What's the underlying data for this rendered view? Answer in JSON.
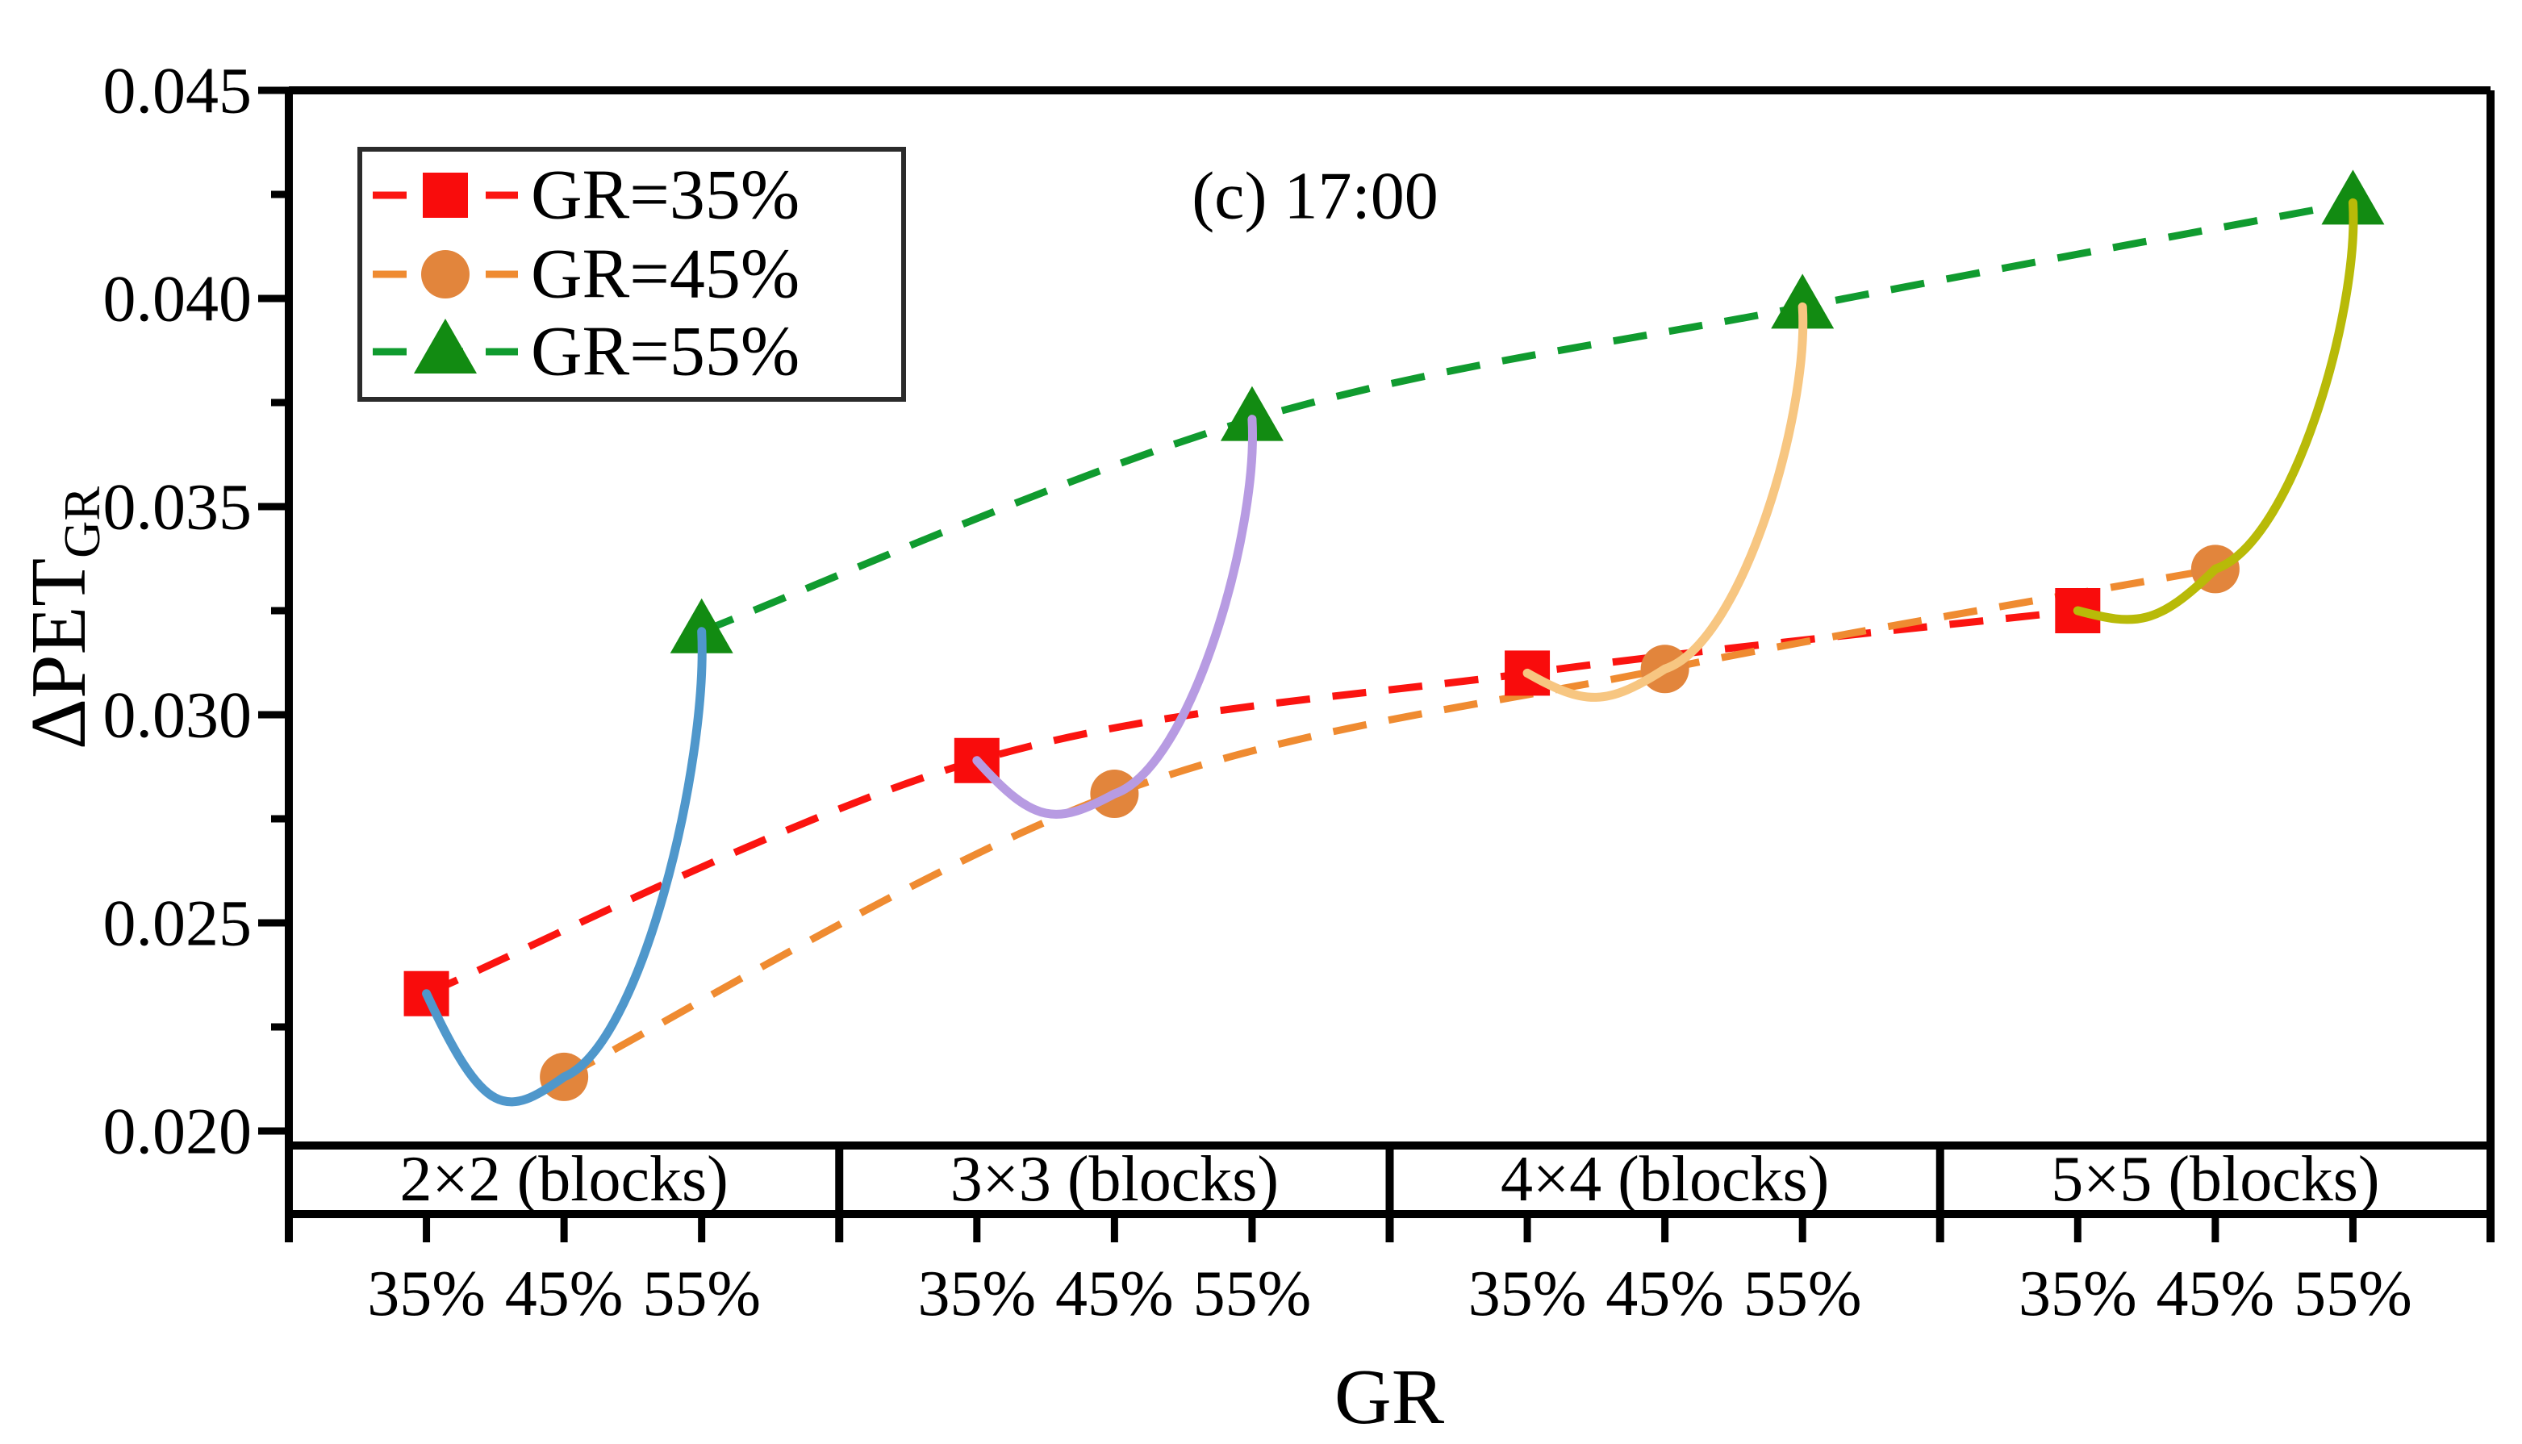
{
  "chart_data": {
    "type": "line",
    "title": "(c) 17:00",
    "xlabel": "GR",
    "ylabel_main": "ΔPET",
    "ylabel_sub": "GR",
    "groups": [
      "2×2 (blocks)",
      "3×3 (blocks)",
      "4×4 (blocks)",
      "5×5 (blocks)"
    ],
    "x_tick_labels": [
      "35%",
      "45%",
      "55%"
    ],
    "y_ticks": [
      "0.045",
      "0.040",
      "0.035",
      "0.030",
      "0.025",
      "0.020"
    ],
    "y_tick_values": [
      0.045,
      0.04,
      0.035,
      0.03,
      0.025,
      0.02
    ],
    "y_minor_tick_values": [
      0.0425,
      0.0375,
      0.0325,
      0.0275,
      0.0225
    ],
    "axis_range": {
      "y_min": 0.02,
      "y_max": 0.045
    },
    "grid": false,
    "legend_position": "top-left",
    "series": [
      {
        "name": "GR=35%",
        "marker": "square",
        "tick_index": 0,
        "marker_color": "#f90c0c",
        "line_color": "#fb1410",
        "line_style": "dashed",
        "values": [
          0.0233,
          0.0289,
          0.031,
          0.0325
        ]
      },
      {
        "name": "GR=45%",
        "marker": "circle",
        "tick_index": 1,
        "marker_color": "#e2853c",
        "line_color": "#ef8b31",
        "line_style": "dashed",
        "values": [
          0.0213,
          0.0281,
          0.0311,
          0.0335
        ]
      },
      {
        "name": "GR=55%",
        "marker": "triangle",
        "tick_index": 2,
        "marker_color": "#128b12",
        "line_color": "#109b2f",
        "line_style": "dashed",
        "values": [
          0.032,
          0.0371,
          0.0398,
          0.0423
        ]
      }
    ],
    "solid_connectors": [
      {
        "group": "2×2 (blocks)",
        "color": "#4f97cb",
        "values": [
          0.0233,
          0.0213,
          0.032
        ]
      },
      {
        "group": "3×3 (blocks)",
        "color": "#b79be2",
        "values": [
          0.0289,
          0.0281,
          0.0371
        ]
      },
      {
        "group": "4×4 (blocks)",
        "color": "#f7c681",
        "values": [
          0.031,
          0.0311,
          0.0398
        ]
      },
      {
        "group": "5×5 (blocks)",
        "color": "#b8ba08",
        "values": [
          0.0325,
          0.0335,
          0.0423
        ]
      }
    ]
  },
  "colors": {
    "axis": "#000000",
    "background": "#ffffff"
  }
}
